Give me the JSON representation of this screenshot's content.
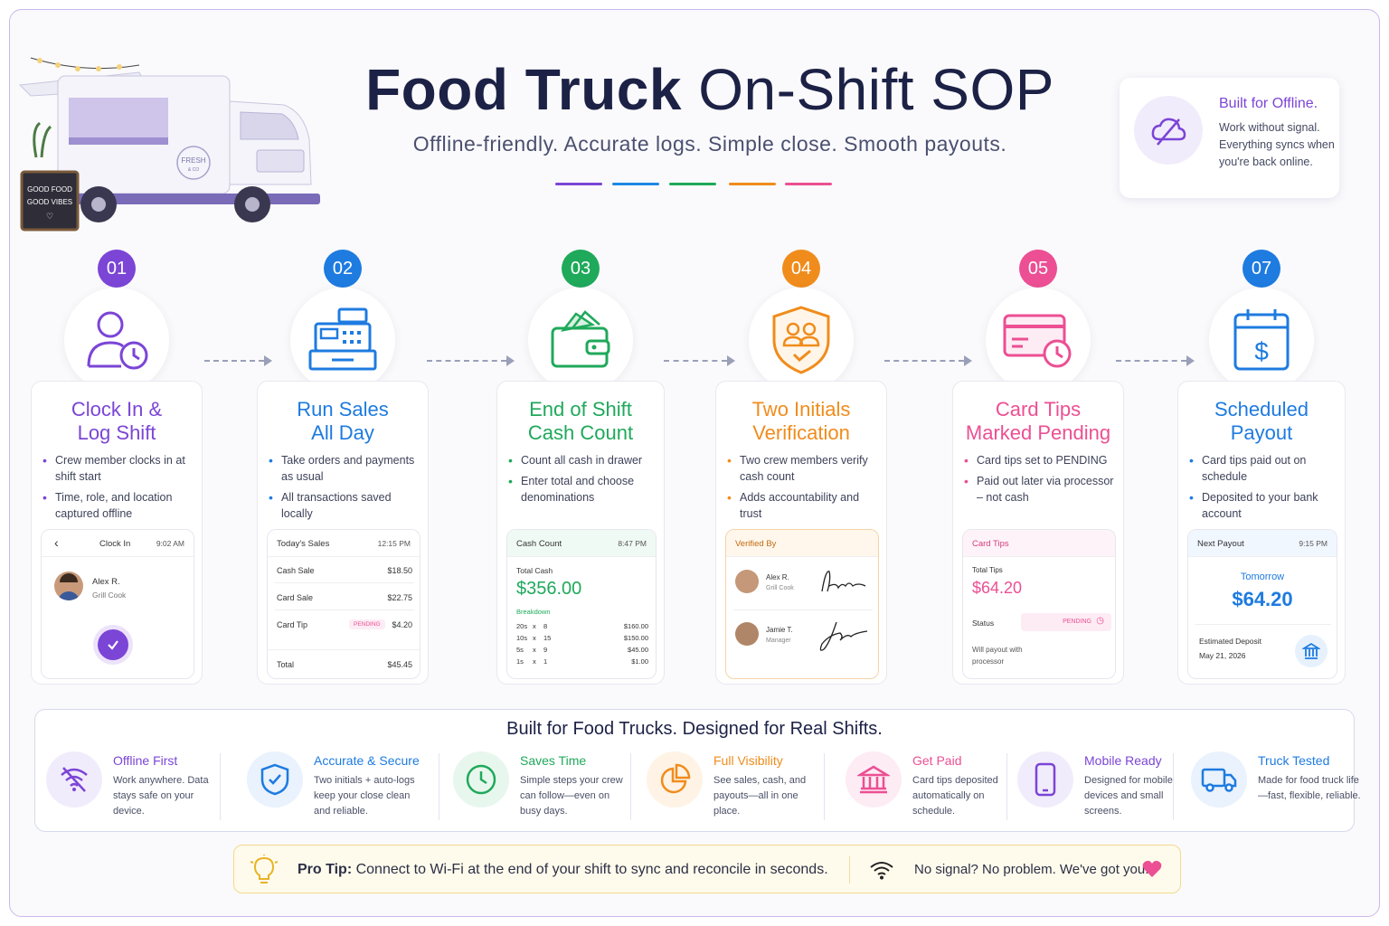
{
  "header": {
    "title_part1": "Food Truck",
    "title_part2": "On-Shift  SOP",
    "subtitle": "Offline-friendly. Accurate logs. Simple close. Smooth payouts.",
    "dash_colors": [
      "#7b45d6",
      "#1e88e5",
      "#1fa95b",
      "#f08c1c",
      "#ec4f93"
    ]
  },
  "truck": {
    "sign_line1": "GOOD FOOD",
    "sign_line2": "GOOD VIBES",
    "logo_line1": "FRESH",
    "logo_line2": "& CO"
  },
  "offline_card": {
    "title": "Built for Offline.",
    "text": "Work without signal. Everything syncs when you're back online."
  },
  "steps": [
    {
      "number": "01",
      "color": "#7b45d6",
      "title": "Clock In &\nLog Shift",
      "bullets": [
        "Crew member clocks in at shift start",
        "Time, role, and location captured offline"
      ],
      "mini": {
        "title": "Clock In",
        "time": "9:02 AM",
        "name": "Alex R.",
        "role": "Grill Cook"
      }
    },
    {
      "number": "02",
      "color": "#1e7be0",
      "title": "Run Sales\nAll Day",
      "bullets": [
        "Take orders and payments as usual",
        "All transactions saved locally"
      ],
      "mini": {
        "title": "Today's Sales",
        "time": "12:15 PM",
        "rows": [
          {
            "label": "Cash Sale",
            "value": "$18.50",
            "badge": ""
          },
          {
            "label": "Card Sale",
            "value": "$22.75",
            "badge": ""
          },
          {
            "label": "Card Tip",
            "value": "$4.20",
            "badge": "PENDING"
          }
        ],
        "total_label": "Total",
        "total_value": "$45.45"
      }
    },
    {
      "number": "03",
      "color": "#1fa95b",
      "title": "End of Shift\nCash Count",
      "bullets": [
        "Count all cash in drawer",
        "Enter total and choose denominations"
      ],
      "mini": {
        "title": "Cash Count",
        "time": "8:47 PM",
        "total_label": "Total Cash",
        "total_value": "$356.00",
        "breakdown_label": "Breakdown",
        "rows": [
          {
            "denom": "20s",
            "x": "x",
            "count": "8",
            "value": "$160.00"
          },
          {
            "denom": "10s",
            "x": "x",
            "count": "15",
            "value": "$150.00"
          },
          {
            "denom": "5s",
            "x": "x",
            "count": "9",
            "value": "$45.00"
          },
          {
            "denom": "1s",
            "x": "x",
            "count": "1",
            "value": "$1.00"
          }
        ]
      }
    },
    {
      "number": "04",
      "color": "#f08c1c",
      "title": "Two Initials\nVerification",
      "bullets": [
        "Two crew members verify cash count",
        "Adds accountability and trust"
      ],
      "mini": {
        "title": "Verified By",
        "people": [
          {
            "name": "Alex R.",
            "role": "Grill Cook"
          },
          {
            "name": "Jamie T.",
            "role": "Manager"
          }
        ]
      }
    },
    {
      "number": "05",
      "color": "#ec4f93",
      "title": "Card Tips\nMarked Pending",
      "bullets": [
        "Card tips set to PENDING",
        "Paid out later via processor – not cash"
      ],
      "mini": {
        "title": "Card Tips",
        "total_label": "Total Tips",
        "total_value": "$64.20",
        "status_label": "Status",
        "status_value": "PENDING",
        "note": "Will payout with processor"
      }
    },
    {
      "number": "07",
      "color": "#1e7be0",
      "title": "Scheduled\nPayout",
      "bullets": [
        "Card tips paid out on schedule",
        "Deposited to your bank account"
      ],
      "mini": {
        "title": "Next Payout",
        "time": "9:15 PM",
        "when": "Tomorrow",
        "amount": "$64.20",
        "deposit_label": "Estimated Deposit",
        "deposit_date": "May 21, 2026"
      }
    }
  ],
  "features": {
    "heading": "Built for Food Trucks. Designed for Real Shifts.",
    "items": [
      {
        "title": "Offline First",
        "text": "Work anywhere. Data stays safe on your device.",
        "color": "#7b45d6",
        "bg": "#f1ecfb",
        "icon": "wifi-off-icon"
      },
      {
        "title": "Accurate & Secure",
        "text": "Two initials + auto-logs keep your close clean and reliable.",
        "color": "#1e7be0",
        "bg": "#e9f2fd",
        "icon": "shield-check-icon"
      },
      {
        "title": "Saves Time",
        "text": "Simple steps your crew can follow—even on busy days.",
        "color": "#1fa95b",
        "bg": "#e8f7ee",
        "icon": "clock-icon"
      },
      {
        "title": "Full Visibility",
        "text": "See sales, cash, and payouts—all in one place.",
        "color": "#f08c1c",
        "bg": "#fef3e5",
        "icon": "pie-chart-icon"
      },
      {
        "title": "Get Paid",
        "text": "Card tips deposited automatically on schedule.",
        "color": "#ec4f93",
        "bg": "#fdecf4",
        "icon": "bank-icon"
      },
      {
        "title": "Mobile Ready",
        "text": "Designed for mobile devices and small screens.",
        "color": "#7b45d6",
        "bg": "#f1ecfb",
        "icon": "phone-icon"
      },
      {
        "title": "Truck Tested",
        "text": "Made for food truck life—fast, flexible, reliable.",
        "color": "#1e7be0",
        "bg": "#e9f2fd",
        "icon": "truck-icon"
      }
    ]
  },
  "protip": {
    "label": "Pro Tip:",
    "text": " Connect to Wi-Fi at the end of your shift to sync and reconcile in seconds.",
    "right": "No signal? No problem. We've got you."
  }
}
